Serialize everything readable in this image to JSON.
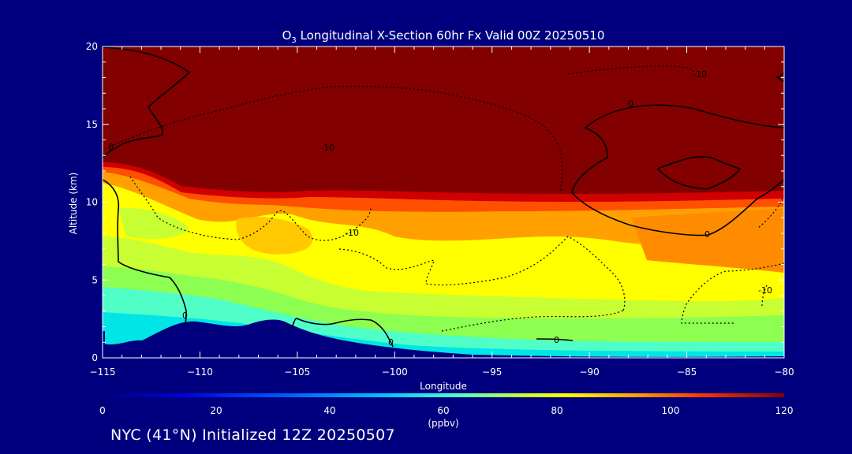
{
  "chart_data": {
    "type": "heatmap",
    "title_main": "O",
    "title_sub": "3",
    "title_rest": " Longitudinal X-Section 60hr  Fx Valid 00Z 20250510",
    "xlabel": "Longitude",
    "ylabel": "Altitude (km)",
    "xlim": [
      -115,
      -80
    ],
    "ylim": [
      0,
      20
    ],
    "xticks": [
      -115,
      -110,
      -105,
      -100,
      -95,
      -90,
      -85,
      -80
    ],
    "yticks": [
      0,
      5,
      10,
      15,
      20
    ],
    "x_tick_labels": [
      "−115",
      "−110",
      "−105",
      "−100",
      "−95",
      "−90",
      "−85",
      "−80"
    ],
    "y_tick_labels": [
      "0",
      "5",
      "10",
      "15",
      "20"
    ],
    "colorbar": {
      "range": [
        0,
        120
      ],
      "ticks": [
        0,
        20,
        40,
        60,
        80,
        100,
        120
      ],
      "tick_labels": [
        "0",
        "20",
        "40",
        "60",
        "80",
        "100",
        "120"
      ],
      "units": "(ppbv)"
    },
    "contour_labels": [
      "0",
      "-10",
      "-10",
      "-10",
      "0",
      "0",
      "-10",
      "0",
      "0",
      "0",
      "0",
      "-10"
    ],
    "color_scheme": [
      "#0000c8",
      "#0064ff",
      "#00c8ff",
      "#50ffc8",
      "#c8ff32",
      "#ffff00",
      "#ffc800",
      "#ff8c00",
      "#ff3200",
      "#c80000",
      "#820000"
    ]
  },
  "footer": "NYC (41°N) Initialized 12Z 20250507"
}
